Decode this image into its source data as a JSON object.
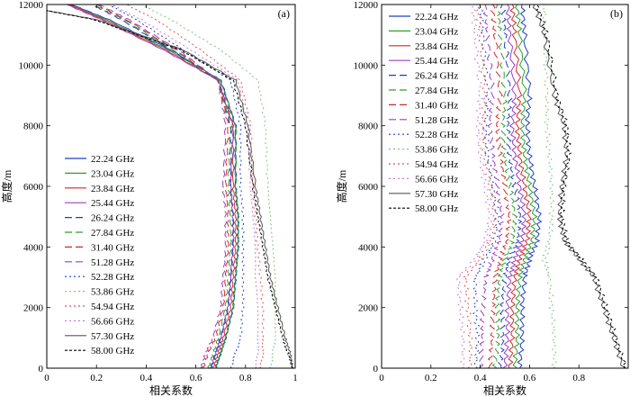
{
  "chart_data": [
    {
      "type": "line",
      "panel_label": "(a)",
      "xlabel": "相关系数",
      "ylabel": "高度/m",
      "xlim": [
        0,
        1
      ],
      "ylim": [
        0,
        12000
      ],
      "xticks": [
        0,
        0.2,
        0.4,
        0.6,
        0.8,
        1
      ],
      "xtick_labels": [
        "0",
        "0.2",
        "0.4",
        "0.6",
        "0.8",
        "1"
      ],
      "yticks": [
        0,
        2000,
        4000,
        6000,
        8000,
        10000,
        12000
      ],
      "ytick_labels": [
        "0",
        "2000",
        "4000",
        "6000",
        "8000",
        "10000",
        "12000"
      ],
      "legend_position": "bottom-left",
      "series": [
        {
          "name": "22.24 GHz",
          "color": "#1f3fbf",
          "dash": "solid",
          "x": [
            0.68,
            0.7,
            0.72,
            0.75,
            0.76,
            0.77,
            0.77,
            0.76,
            0.76,
            0.7,
            0.5,
            0.25,
            0.1
          ],
          "y": [
            0,
            500,
            1000,
            2000,
            3000,
            4000,
            5000,
            6000,
            8000,
            9500,
            10500,
            11500,
            12000
          ]
        },
        {
          "name": "23.04 GHz",
          "color": "#2ca02c",
          "dash": "solid",
          "x": [
            0.68,
            0.7,
            0.72,
            0.75,
            0.76,
            0.77,
            0.77,
            0.76,
            0.76,
            0.7,
            0.49,
            0.24,
            0.09
          ],
          "y": [
            0,
            500,
            1000,
            2000,
            3000,
            4000,
            5000,
            6000,
            8000,
            9500,
            10500,
            11500,
            12000
          ]
        },
        {
          "name": "23.84 GHz",
          "color": "#d62728",
          "dash": "solid",
          "x": [
            0.67,
            0.69,
            0.71,
            0.74,
            0.75,
            0.76,
            0.76,
            0.75,
            0.75,
            0.69,
            0.48,
            0.23,
            0.09
          ],
          "y": [
            0,
            500,
            1000,
            2000,
            3000,
            4000,
            5000,
            6000,
            8000,
            9500,
            10500,
            11500,
            12000
          ]
        },
        {
          "name": "25.44 GHz",
          "color": "#9b3fbf",
          "dash": "solid",
          "x": [
            0.66,
            0.68,
            0.7,
            0.73,
            0.74,
            0.75,
            0.75,
            0.74,
            0.75,
            0.69,
            0.47,
            0.22,
            0.08
          ],
          "y": [
            0,
            500,
            1000,
            2000,
            3000,
            4000,
            5000,
            6000,
            8000,
            9500,
            10500,
            11500,
            12000
          ]
        },
        {
          "name": "26.24 GHz",
          "color": "#1f3fbf",
          "dash": "8,4",
          "x": [
            0.66,
            0.68,
            0.7,
            0.73,
            0.74,
            0.75,
            0.75,
            0.74,
            0.74,
            0.69,
            0.5,
            0.3,
            0.18
          ],
          "y": [
            0,
            500,
            1000,
            2000,
            3000,
            4000,
            5000,
            6000,
            8000,
            9500,
            10500,
            11500,
            12000
          ]
        },
        {
          "name": "27.84 GHz",
          "color": "#2ca02c",
          "dash": "8,4",
          "x": [
            0.65,
            0.67,
            0.69,
            0.72,
            0.73,
            0.74,
            0.74,
            0.73,
            0.74,
            0.69,
            0.51,
            0.31,
            0.19
          ],
          "y": [
            0,
            500,
            1000,
            2000,
            3000,
            4000,
            5000,
            6000,
            8000,
            9500,
            10500,
            11500,
            12000
          ]
        },
        {
          "name": "31.40 GHz",
          "color": "#d62728",
          "dash": "8,4",
          "x": [
            0.63,
            0.65,
            0.68,
            0.71,
            0.72,
            0.73,
            0.73,
            0.72,
            0.73,
            0.69,
            0.52,
            0.32,
            0.2
          ],
          "y": [
            0,
            500,
            1000,
            2000,
            3000,
            4000,
            5000,
            6000,
            8000,
            9500,
            10500,
            11500,
            12000
          ]
        },
        {
          "name": "51.28 GHz",
          "color": "#9b3fbf",
          "dash": "8,4",
          "x": [
            0.62,
            0.64,
            0.67,
            0.7,
            0.71,
            0.72,
            0.72,
            0.71,
            0.72,
            0.69,
            0.53,
            0.33,
            0.21
          ],
          "y": [
            0,
            500,
            1000,
            2000,
            3000,
            4000,
            5000,
            6000,
            8000,
            9500,
            10500,
            11500,
            12000
          ]
        },
        {
          "name": "52.28 GHz",
          "color": "#1f3fbf",
          "dash": "2,3",
          "x": [
            0.74,
            0.76,
            0.78,
            0.79,
            0.79,
            0.79,
            0.79,
            0.78,
            0.78,
            0.74,
            0.55,
            0.36,
            0.25
          ],
          "y": [
            0,
            500,
            1000,
            2000,
            3000,
            4000,
            5000,
            6000,
            8000,
            9500,
            10500,
            11500,
            12000
          ]
        },
        {
          "name": "53.86 GHz",
          "color": "#7bc67b",
          "dash": "2,3",
          "x": [
            0.9,
            0.91,
            0.92,
            0.92,
            0.92,
            0.91,
            0.9,
            0.89,
            0.88,
            0.85,
            0.7,
            0.5,
            0.38
          ],
          "y": [
            0,
            500,
            1000,
            2000,
            3000,
            4000,
            5000,
            6000,
            8000,
            9500,
            10500,
            11500,
            12000
          ]
        },
        {
          "name": "54.94 GHz",
          "color": "#e45050",
          "dash": "2,3",
          "x": [
            0.86,
            0.87,
            0.87,
            0.87,
            0.86,
            0.85,
            0.84,
            0.83,
            0.82,
            0.78,
            0.62,
            0.44,
            0.32
          ],
          "y": [
            0,
            500,
            1000,
            2000,
            3000,
            4000,
            5000,
            6000,
            8000,
            9500,
            10500,
            11500,
            12000
          ]
        },
        {
          "name": "56.66 GHz",
          "color": "#c77ccf",
          "dash": "2,3",
          "x": [
            0.84,
            0.85,
            0.85,
            0.85,
            0.84,
            0.84,
            0.83,
            0.82,
            0.81,
            0.77,
            0.58,
            0.38,
            0.26
          ],
          "y": [
            0,
            500,
            1000,
            2000,
            3000,
            4000,
            5000,
            6000,
            8000,
            9500,
            10500,
            11500,
            12000
          ]
        },
        {
          "name": "57.30 GHz",
          "color": "#555555",
          "dash": "solid",
          "x": [
            0.99,
            0.98,
            0.96,
            0.93,
            0.9,
            0.88,
            0.86,
            0.84,
            0.81,
            0.76,
            0.55,
            0.2,
            0.0
          ],
          "y": [
            0,
            500,
            1000,
            2000,
            3000,
            4000,
            5000,
            6000,
            8000,
            9500,
            10500,
            11500,
            11800
          ]
        },
        {
          "name": "58.00 GHz",
          "color": "#000000",
          "dash": "3,2",
          "x": [
            0.99,
            0.97,
            0.95,
            0.92,
            0.89,
            0.87,
            0.85,
            0.83,
            0.8,
            0.75,
            0.54,
            0.19,
            0.0
          ],
          "y": [
            0,
            500,
            1000,
            2000,
            3000,
            4000,
            5000,
            6000,
            8000,
            9500,
            10500,
            11500,
            11800
          ]
        }
      ]
    },
    {
      "type": "line",
      "panel_label": "(b)",
      "xlabel": "相关系数",
      "ylabel": "高度/m",
      "xlim": [
        0,
        1
      ],
      "ylim": [
        0,
        12000
      ],
      "xticks": [
        0,
        0.2,
        0.4,
        0.6,
        0.8
      ],
      "xtick_labels": [
        "0",
        "0.2",
        "0.4",
        "0.6",
        "0.8"
      ],
      "yticks": [
        0,
        2000,
        4000,
        6000,
        8000,
        10000,
        12000
      ],
      "ytick_labels": [
        "0",
        "2000",
        "4000",
        "6000",
        "8000",
        "10000",
        "12000"
      ],
      "legend_position": "top-left",
      "series": [
        {
          "name": "22.24 GHz",
          "color": "#1f3fbf",
          "dash": "solid",
          "x": [
            0.56,
            0.57,
            0.57,
            0.58,
            0.6,
            0.63,
            0.64,
            0.62,
            0.6,
            0.59,
            0.6,
            0.58,
            0.57
          ],
          "y": [
            0,
            1000,
            2000,
            3000,
            3600,
            4200,
            5000,
            6000,
            7000,
            8000,
            9000,
            11000,
            12000
          ]
        },
        {
          "name": "23.04 GHz",
          "color": "#2ca02c",
          "dash": "solid",
          "x": [
            0.54,
            0.55,
            0.55,
            0.56,
            0.58,
            0.61,
            0.62,
            0.6,
            0.58,
            0.57,
            0.58,
            0.56,
            0.55
          ],
          "y": [
            0,
            1000,
            2000,
            3000,
            3600,
            4200,
            5000,
            6000,
            7000,
            8000,
            9000,
            11000,
            12000
          ]
        },
        {
          "name": "23.84 GHz",
          "color": "#d62728",
          "dash": "solid",
          "x": [
            0.52,
            0.53,
            0.53,
            0.54,
            0.56,
            0.59,
            0.6,
            0.58,
            0.56,
            0.55,
            0.56,
            0.54,
            0.53
          ],
          "y": [
            0,
            1000,
            2000,
            3000,
            3600,
            4200,
            5000,
            6000,
            7000,
            8000,
            9000,
            11000,
            12000
          ]
        },
        {
          "name": "25.44 GHz",
          "color": "#9b3fbf",
          "dash": "solid",
          "x": [
            0.5,
            0.51,
            0.51,
            0.52,
            0.54,
            0.57,
            0.58,
            0.56,
            0.54,
            0.53,
            0.54,
            0.52,
            0.51
          ],
          "y": [
            0,
            1000,
            2000,
            3000,
            3600,
            4200,
            5000,
            6000,
            7000,
            8000,
            9000,
            11000,
            12000
          ]
        },
        {
          "name": "26.24 GHz",
          "color": "#1f3fbf",
          "dash": "8,4",
          "x": [
            0.48,
            0.49,
            0.49,
            0.5,
            0.52,
            0.55,
            0.56,
            0.54,
            0.52,
            0.51,
            0.52,
            0.5,
            0.49
          ],
          "y": [
            0,
            1000,
            2000,
            3000,
            3600,
            4200,
            5000,
            6000,
            7000,
            8000,
            9000,
            11000,
            12000
          ]
        },
        {
          "name": "27.84 GHz",
          "color": "#2ca02c",
          "dash": "8,4",
          "x": [
            0.46,
            0.47,
            0.47,
            0.48,
            0.5,
            0.53,
            0.54,
            0.52,
            0.5,
            0.49,
            0.5,
            0.48,
            0.47
          ],
          "y": [
            0,
            1000,
            2000,
            3000,
            3600,
            4200,
            5000,
            6000,
            7000,
            8000,
            9000,
            11000,
            12000
          ]
        },
        {
          "name": "31.40 GHz",
          "color": "#d62728",
          "dash": "8,4",
          "x": [
            0.44,
            0.45,
            0.45,
            0.46,
            0.48,
            0.51,
            0.52,
            0.5,
            0.48,
            0.47,
            0.48,
            0.46,
            0.45
          ],
          "y": [
            0,
            1000,
            2000,
            3000,
            3600,
            4200,
            5000,
            6000,
            7000,
            8000,
            9000,
            11000,
            12000
          ]
        },
        {
          "name": "51.28 GHz",
          "color": "#9b3fbf",
          "dash": "8,4",
          "x": [
            0.4,
            0.41,
            0.41,
            0.42,
            0.45,
            0.48,
            0.49,
            0.47,
            0.45,
            0.44,
            0.45,
            0.43,
            0.42
          ],
          "y": [
            0,
            1000,
            2000,
            3000,
            3600,
            4200,
            5000,
            6000,
            7000,
            8000,
            9000,
            11000,
            12000
          ]
        },
        {
          "name": "52.28 GHz",
          "color": "#1f3fbf",
          "dash": "2,3",
          "x": [
            0.38,
            0.39,
            0.38,
            0.38,
            0.42,
            0.46,
            0.47,
            0.45,
            0.43,
            0.42,
            0.43,
            0.41,
            0.4
          ],
          "y": [
            0,
            1000,
            2000,
            3000,
            3600,
            4200,
            5000,
            6000,
            7000,
            8000,
            9000,
            11000,
            12000
          ]
        },
        {
          "name": "53.86 GHz",
          "color": "#7bc67b",
          "dash": "2,3",
          "x": [
            0.7,
            0.7,
            0.69,
            0.68,
            0.66,
            0.68,
            0.69,
            0.69,
            0.68,
            0.67,
            0.67,
            0.66,
            0.66
          ],
          "y": [
            0,
            1000,
            2000,
            3000,
            3600,
            4200,
            5000,
            6000,
            7000,
            8000,
            9000,
            11000,
            12000
          ]
        },
        {
          "name": "54.94 GHz",
          "color": "#e45050",
          "dash": "2,3",
          "x": [
            0.36,
            0.36,
            0.35,
            0.34,
            0.4,
            0.44,
            0.46,
            0.44,
            0.42,
            0.41,
            0.42,
            0.4,
            0.39
          ],
          "y": [
            0,
            1000,
            2000,
            3000,
            3600,
            4200,
            5000,
            6000,
            7000,
            8000,
            9000,
            11000,
            12000
          ]
        },
        {
          "name": "56.66 GHz",
          "color": "#c77ccf",
          "dash": "2,3",
          "x": [
            0.33,
            0.33,
            0.32,
            0.31,
            0.38,
            0.42,
            0.44,
            0.42,
            0.4,
            0.39,
            0.4,
            0.38,
            0.37
          ],
          "y": [
            0,
            1000,
            2000,
            3000,
            3600,
            4200,
            5000,
            6000,
            7000,
            8000,
            9000,
            11000,
            12000
          ]
        },
        {
          "name": "57.30 GHz",
          "color": "#555555",
          "dash": "solid",
          "x": [
            0.98,
            0.94,
            0.9,
            0.86,
            0.8,
            0.74,
            0.72,
            0.73,
            0.75,
            0.74,
            0.7,
            0.66,
            0.62
          ],
          "y": [
            0,
            1000,
            2000,
            3000,
            3600,
            4200,
            5000,
            6000,
            7000,
            8000,
            9000,
            11000,
            12000
          ]
        },
        {
          "name": "58.00 GHz",
          "color": "#000000",
          "dash": "3,2",
          "x": [
            0.99,
            0.95,
            0.91,
            0.87,
            0.81,
            0.75,
            0.73,
            0.74,
            0.76,
            0.75,
            0.71,
            0.67,
            0.63
          ],
          "y": [
            0,
            1000,
            2000,
            3000,
            3600,
            4200,
            5000,
            6000,
            7000,
            8000,
            9000,
            11000,
            12000
          ]
        }
      ]
    }
  ]
}
